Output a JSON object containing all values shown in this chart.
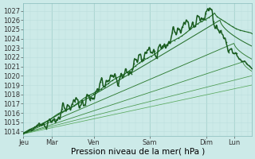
{
  "bg_color": "#cceae8",
  "grid_major_color": "#aad4d0",
  "grid_minor_color": "#bbdedd",
  "line_colors": {
    "main": "#1a5c20",
    "close1": "#1f6b25",
    "close2": "#256e2a",
    "mid1": "#2d7a30",
    "mid2": "#3a8a3e",
    "far1": "#4a9a4e",
    "far2": "#5aaa5e"
  },
  "ylim": [
    1013.5,
    1027.8
  ],
  "yticks": [
    1014,
    1015,
    1016,
    1017,
    1018,
    1019,
    1020,
    1021,
    1022,
    1023,
    1024,
    1025,
    1026,
    1027
  ],
  "xlabel": "Pression niveau de la mer( hPa )",
  "x_day_labels": [
    "Jeu",
    "Mar",
    "Ven",
    "Sam",
    "Dim",
    "Lun"
  ],
  "x_day_positions": [
    0,
    16,
    40,
    72,
    104,
    120
  ],
  "xlim": [
    0,
    130
  ],
  "tick_fontsize": 6,
  "xlabel_fontsize": 7.5
}
